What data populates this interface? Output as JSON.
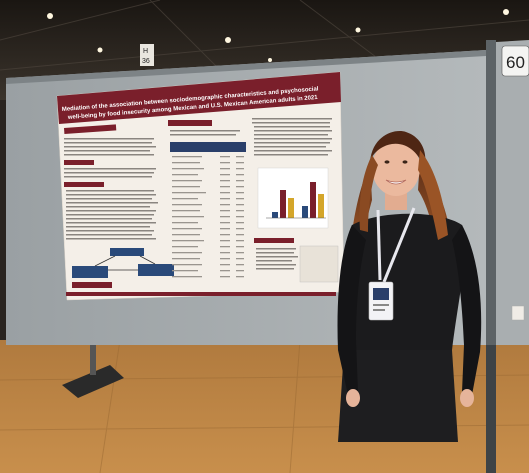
{
  "photo": {
    "aisle_sign": "H\n36",
    "aisle_sign_line1": "H",
    "aisle_sign_line2": "36",
    "next_board_number": "60"
  },
  "poster": {
    "title_line1": "Mediation of the association between sociodemographic characteristics and psychosocial",
    "title_line2": "well-being by food insecurity among Mexican and U.S. Mexican American adults in 2021",
    "sections": [
      "Introduction",
      "Aim",
      "Methods",
      "Results",
      "Conclusion"
    ],
    "theme_color": "#7a1f2b"
  }
}
